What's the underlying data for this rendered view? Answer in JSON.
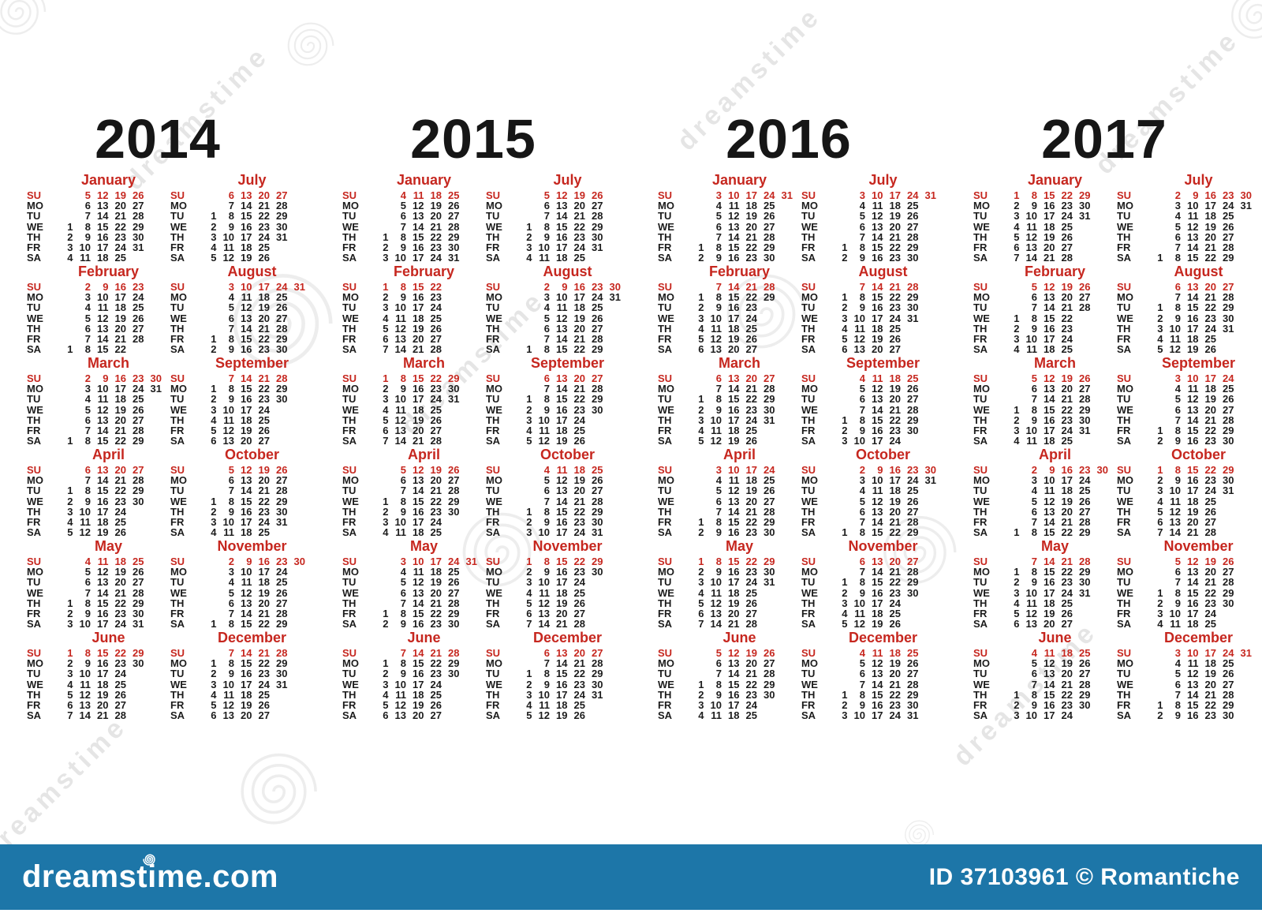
{
  "weekday_labels": [
    "SU",
    "MO",
    "TU",
    "WE",
    "TH",
    "FR",
    "SA"
  ],
  "years": [
    {
      "year": "2014",
      "months": [
        {
          "name": "January",
          "rows": [
            ". 5 12 19 26",
            ". 6 13 20 27",
            ". 7 14 21 28",
            "1 8 15 22 29",
            "2 9 16 23 30",
            "3 10 17 24 31",
            "4 11 18 25"
          ]
        },
        {
          "name": "February",
          "rows": [
            ". 2 9 16 23",
            ". 3 10 17 24",
            ". 4 11 18 25",
            ". 5 12 19 26",
            ". 6 13 20 27",
            ". 7 14 21 28",
            "1 8 15 22"
          ]
        },
        {
          "name": "March",
          "rows": [
            ". 2 9 16 23 30",
            ". 3 10 17 24 31",
            ". 4 11 18 25",
            ". 5 12 19 26",
            ". 6 13 20 27",
            ". 7 14 21 28",
            "1 8 15 22 29"
          ]
        },
        {
          "name": "April",
          "rows": [
            ". 6 13 20 27",
            ". 7 14 21 28",
            "1 8 15 22 29",
            "2 9 16 23 30",
            "3 10 17 24",
            "4 11 18 25",
            "5 12 19 26"
          ]
        },
        {
          "name": "May",
          "rows": [
            ". 4 11 18 25",
            ". 5 12 19 26",
            ". 6 13 20 27",
            ". 7 14 21 28",
            "1 8 15 22 29",
            "2 9 16 23 30",
            "3 10 17 24 31"
          ]
        },
        {
          "name": "June",
          "rows": [
            "1 8 15 22 29",
            "2 9 16 23 30",
            "3 10 17 24",
            "4 11 18 25",
            "5 12 19 26",
            "6 13 20 27",
            "7 14 21 28"
          ]
        },
        {
          "name": "July",
          "rows": [
            ". 6 13 20 27",
            ". 7 14 21 28",
            "1 8 15 22 29",
            "2 9 16 23 30",
            "3 10 17 24 31",
            "4 11 18 25",
            "5 12 19 26"
          ]
        },
        {
          "name": "August",
          "rows": [
            ". 3 10 17 24 31",
            ". 4 11 18 25",
            ". 5 12 19 26",
            ". 6 13 20 27",
            ". 7 14 21 28",
            "1 8 15 22 29",
            "2 9 16 23 30"
          ]
        },
        {
          "name": "September",
          "rows": [
            ". 7 14 21 28",
            "1 8 15 22 29",
            "2 9 16 23 30",
            "3 10 17 24",
            "4 11 18 25",
            "5 12 19 26",
            "6 13 20 27"
          ]
        },
        {
          "name": "October",
          "rows": [
            ". 5 12 19 26",
            ". 6 13 20 27",
            ". 7 14 21 28",
            "1 8 15 22 29",
            "2 9 16 23 30",
            "3 10 17 24 31",
            "4 11 18 25"
          ]
        },
        {
          "name": "November",
          "rows": [
            ". 2 9 16 23 30",
            ". 3 10 17 24",
            ". 4 11 18 25",
            ". 5 12 19 26",
            ". 6 13 20 27",
            ". 7 14 21 28",
            "1 8 15 22 29"
          ]
        },
        {
          "name": "December",
          "rows": [
            ". 7 14 21 28",
            "1 8 15 22 29",
            "2 9 16 23 30",
            "3 10 17 24 31",
            "4 11 18 25",
            "5 12 19 26",
            "6 13 20 27"
          ]
        }
      ]
    },
    {
      "year": "2015",
      "months": [
        {
          "name": "January",
          "rows": [
            ". 4 11 18 25",
            ". 5 12 19 26",
            ". 6 13 20 27",
            ". 7 14 21 28",
            "1 8 15 22 29",
            "2 9 16 23 30",
            "3 10 17 24 31"
          ]
        },
        {
          "name": "February",
          "rows": [
            "1 8 15 22",
            "2 9 16 23",
            "3 10 17 24",
            "4 11 18 25",
            "5 12 19 26",
            "6 13 20 27",
            "7 14 21 28"
          ]
        },
        {
          "name": "March",
          "rows": [
            "1 8 15 22 29",
            "2 9 16 23 30",
            "3 10 17 24 31",
            "4 11 18 25",
            "5 12 19 26",
            "6 13 20 27",
            "7 14 21 28"
          ]
        },
        {
          "name": "April",
          "rows": [
            ". 5 12 19 26",
            ". 6 13 20 27",
            ". 7 14 21 28",
            "1 8 15 22 29",
            "2 9 16 23 30",
            "3 10 17 24",
            "4 11 18 25"
          ]
        },
        {
          "name": "May",
          "rows": [
            ". 3 10 17 24 31",
            ". 4 11 18 25",
            ". 5 12 19 26",
            ". 6 13 20 27",
            ". 7 14 21 28",
            "1 8 15 22 29",
            "2 9 16 23 30"
          ]
        },
        {
          "name": "June",
          "rows": [
            ". 7 14 21 28",
            "1 8 15 22 29",
            "2 9 16 23 30",
            "3 10 17 24",
            "4 11 18 25",
            "5 12 19 26",
            "6 13 20 27"
          ]
        },
        {
          "name": "July",
          "rows": [
            ". 5 12 19 26",
            ". 6 13 20 27",
            ". 7 14 21 28",
            "1 8 15 22 29",
            "2 9 16 23 30",
            "3 10 17 24 31",
            "4 11 18 25"
          ]
        },
        {
          "name": "August",
          "rows": [
            ". 2 9 16 23 30",
            ". 3 10 17 24 31",
            ". 4 11 18 25",
            ". 5 12 19 26",
            ". 6 13 20 27",
            ". 7 14 21 28",
            "1 8 15 22 29"
          ]
        },
        {
          "name": "September",
          "rows": [
            ". 6 13 20 27",
            ". 7 14 21 28",
            "1 8 15 22 29",
            "2 9 16 23 30",
            "3 10 17 24",
            "4 11 18 25",
            "5 12 19 26"
          ]
        },
        {
          "name": "October",
          "rows": [
            ". 4 11 18 25",
            ". 5 12 19 26",
            ". 6 13 20 27",
            ". 7 14 21 28",
            "1 8 15 22 29",
            "2 9 16 23 30",
            "3 10 17 24 31"
          ]
        },
        {
          "name": "November",
          "rows": [
            "1 8 15 22 29",
            "2 9 16 23 30",
            "3 10 17 24",
            "4 11 18 25",
            "5 12 19 26",
            "6 13 20 27",
            "7 14 21 28"
          ]
        },
        {
          "name": "December",
          "rows": [
            ". 6 13 20 27",
            ". 7 14 21 28",
            "1 8 15 22 29",
            "2 9 16 23 30",
            "3 10 17 24 31",
            "4 11 18 25",
            "5 12 19 26"
          ]
        }
      ]
    },
    {
      "year": "2016",
      "months": [
        {
          "name": "January",
          "rows": [
            ". 3 10 17 24 31",
            ". 4 11 18 25",
            ". 5 12 19 26",
            ". 6 13 20 27",
            ". 7 14 21 28",
            "1 8 15 22 29",
            "2 9 16 23 30"
          ]
        },
        {
          "name": "February",
          "rows": [
            ". 7 14 21 28",
            "1 8 15 22 29",
            "2 9 16 23",
            "3 10 17 24",
            "4 11 18 25",
            "5 12 19 26",
            "6 13 20 27"
          ]
        },
        {
          "name": "March",
          "rows": [
            ". 6 13 20 27",
            ". 7 14 21 28",
            "1 8 15 22 29",
            "2 9 16 23 30",
            "3 10 17 24 31",
            "4 11 18 25",
            "5 12 19 26"
          ]
        },
        {
          "name": "April",
          "rows": [
            ". 3 10 17 24",
            ". 4 11 18 25",
            ". 5 12 19 26",
            ". 6 13 20 27",
            ". 7 14 21 28",
            "1 8 15 22 29",
            "2 9 16 23 30"
          ]
        },
        {
          "name": "May",
          "rows": [
            "1 8 15 22 29",
            "2 9 16 23 30",
            "3 10 17 24 31",
            "4 11 18 25",
            "5 12 19 26",
            "6 13 20 27",
            "7 14 21 28"
          ]
        },
        {
          "name": "June",
          "rows": [
            ". 5 12 19 26",
            ". 6 13 20 27",
            ". 7 14 21 28",
            "1 8 15 22 29",
            "2 9 16 23 30",
            "3 10 17 24",
            "4 11 18 25"
          ]
        },
        {
          "name": "July",
          "rows": [
            ". 3 10 17 24 31",
            ". 4 11 18 25",
            ". 5 12 19 26",
            ". 6 13 20 27",
            ". 7 14 21 28",
            "1 8 15 22 29",
            "2 9 16 23 30"
          ]
        },
        {
          "name": "August",
          "rows": [
            ". 7 14 21 28",
            "1 8 15 22 29",
            "2 9 16 23 30",
            "3 10 17 24 31",
            "4 11 18 25",
            "5 12 19 26",
            "6 13 20 27"
          ]
        },
        {
          "name": "September",
          "rows": [
            ". 4 11 18 25",
            ". 5 12 19 26",
            ". 6 13 20 27",
            ". 7 14 21 28",
            "1 8 15 22 29",
            "2 9 16 23 30",
            "3 10 17 24"
          ]
        },
        {
          "name": "October",
          "rows": [
            ". 2 9 16 23 30",
            ". 3 10 17 24 31",
            ". 4 11 18 25",
            ". 5 12 19 26",
            ". 6 13 20 27",
            ". 7 14 21 28",
            "1 8 15 22 29"
          ]
        },
        {
          "name": "November",
          "rows": [
            ". 6 13 20 27",
            ". 7 14 21 28",
            "1 8 15 22 29",
            "2 9 16 23 30",
            "3 10 17 24",
            "4 11 18 25",
            "5 12 19 26"
          ]
        },
        {
          "name": "December",
          "rows": [
            ". 4 11 18 25",
            ". 5 12 19 26",
            ". 6 13 20 27",
            ". 7 14 21 28",
            "1 8 15 22 29",
            "2 9 16 23 30",
            "3 10 17 24 31"
          ]
        }
      ]
    },
    {
      "year": "2017",
      "months": [
        {
          "name": "January",
          "rows": [
            "1 8 15 22 29",
            "2 9 16 23 30",
            "3 10 17 24 31",
            "4 11 18 25",
            "5 12 19 26",
            "6 13 20 27",
            "7 14 21 28"
          ]
        },
        {
          "name": "February",
          "rows": [
            ". 5 12 19 26",
            ". 6 13 20 27",
            ". 7 14 21 28",
            "1 8 15 22",
            "2 9 16 23",
            "3 10 17 24",
            "4 11 18 25"
          ]
        },
        {
          "name": "March",
          "rows": [
            ". 5 12 19 26",
            ". 6 13 20 27",
            ". 7 14 21 28",
            "1 8 15 22 29",
            "2 9 16 23 30",
            "3 10 17 24 31",
            "4 11 18 25"
          ]
        },
        {
          "name": "April",
          "rows": [
            ". 2 9 16 23 30",
            ". 3 10 17 24",
            ". 4 11 18 25",
            ". 5 12 19 26",
            ". 6 13 20 27",
            ". 7 14 21 28",
            "1 8 15 22 29"
          ]
        },
        {
          "name": "May",
          "rows": [
            ". 7 14 21 28",
            "1 8 15 22 29",
            "2 9 16 23 30",
            "3 10 17 24 31",
            "4 11 18 25",
            "5 12 19 26",
            "6 13 20 27"
          ]
        },
        {
          "name": "June",
          "rows": [
            ". 4 11 18 25",
            ". 5 12 19 26",
            ". 6 13 20 27",
            ". 7 14 21 28",
            "1 8 15 22 29",
            "2 9 16 23 30",
            "3 10 17 24"
          ]
        },
        {
          "name": "July",
          "rows": [
            ". 2 9 16 23 30",
            ". 3 10 17 24 31",
            ". 4 11 18 25",
            ". 5 12 19 26",
            ". 6 13 20 27",
            ". 7 14 21 28",
            "1 8 15 22 29"
          ]
        },
        {
          "name": "August",
          "rows": [
            ". 6 13 20 27",
            ". 7 14 21 28",
            "1 8 15 22 29",
            "2 9 16 23 30",
            "3 10 17 24 31",
            "4 11 18 25",
            "5 12 19 26"
          ]
        },
        {
          "name": "September",
          "rows": [
            ". 3 10 17 24",
            ". 4 11 18 25",
            ". 5 12 19 26",
            ". 6 13 20 27",
            ". 7 14 21 28",
            "1 8 15 22 29",
            "2 9 16 23 30"
          ]
        },
        {
          "name": "October",
          "rows": [
            "1 8 15 22 29",
            "2 9 16 23 30",
            "3 10 17 24 31",
            "4 11 18 25",
            "5 12 19 26",
            "6 13 20 27",
            "7 14 21 28"
          ]
        },
        {
          "name": "November",
          "rows": [
            ". 5 12 19 26",
            ". 6 13 20 27",
            ". 7 14 21 28",
            "1 8 15 22 29",
            "2 9 16 23 30",
            "3 10 17 24",
            "4 11 18 25"
          ]
        },
        {
          "name": "December",
          "rows": [
            ". 3 10 17 24 31",
            ". 4 11 18 25",
            ". 5 12 19 26",
            ". 6 13 20 27",
            ". 7 14 21 28",
            "1 8 15 22 29",
            "2 9 16 23 30"
          ]
        }
      ]
    }
  ],
  "watermark": {
    "brand": "dreamstime"
  },
  "footer": {
    "site_label": "dreamstime.com",
    "image_id": "ID 37103961",
    "author": "© Romantiche"
  },
  "colors": {
    "accent_red": "#c6271f",
    "text_black": "#1c1c1c",
    "footer_blue": "#1d76a8",
    "background": "#ffffff"
  }
}
